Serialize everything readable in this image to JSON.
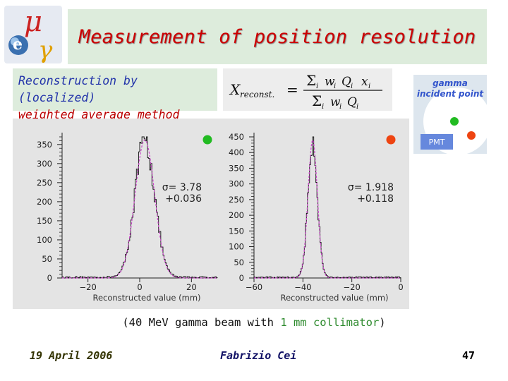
{
  "slide": {
    "title": "Measurement of position resolution",
    "method_line1": "Reconstruction by (localized)",
    "method_line2": "weighted average method",
    "caption_pre": "(40 MeV gamma beam with ",
    "caption_highlight": "1 mm collimator",
    "caption_post": ")",
    "footer_date": "19 April 2006",
    "footer_author": "Fabrizio Cei",
    "footer_page": "47"
  },
  "logo": {
    "mu": "μ",
    "e": "e",
    "gamma": "γ"
  },
  "formula": {
    "lhs": "X",
    "lhs_sub": "reconst.",
    "equals": "=",
    "sum": "Σ",
    "i": "i",
    "w": "w",
    "Q": "Q",
    "x": "x"
  },
  "inset": {
    "line1": "gamma",
    "line2": "incident point",
    "pmt": "PMT"
  },
  "colors": {
    "title": "#cc0000",
    "green_dot": "#22bb22",
    "red_dot": "#ee4411",
    "fit": "#cc44cc",
    "pmt_box": "#6688dd"
  },
  "chart_data": [
    {
      "type": "histogram",
      "marker": "green",
      "xlabel": "Reconstructed value (mm)",
      "xlim": [
        -30,
        30
      ],
      "ylim": [
        0,
        370
      ],
      "xticks": [
        -20,
        0,
        20
      ],
      "yticks": [
        0,
        50,
        100,
        150,
        200,
        250,
        300,
        350
      ],
      "annotation_sigma": "σ= 3.78",
      "annotation_err": "+0.036",
      "series": [
        {
          "type": "gaussian",
          "mean": 2,
          "sigma": 3.78,
          "peak": 362,
          "noise": 0.12
        }
      ]
    },
    {
      "type": "histogram",
      "marker": "red",
      "xlabel": "Reconstructed value (mm)",
      "xlim": [
        -60,
        0
      ],
      "ylim": [
        0,
        450
      ],
      "xticks": [
        -60,
        -40,
        -20,
        0
      ],
      "yticks": [
        0,
        50,
        100,
        150,
        200,
        250,
        300,
        350,
        400,
        450
      ],
      "annotation_sigma": "σ= 1.918",
      "annotation_err": "+0.118",
      "series": [
        {
          "type": "gaussian",
          "mean": -36,
          "sigma": 1.918,
          "peak": 440,
          "noise": 0.12
        }
      ]
    }
  ]
}
